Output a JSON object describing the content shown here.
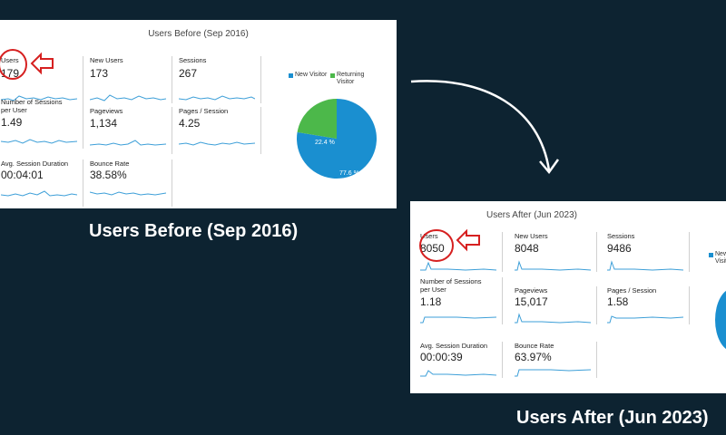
{
  "before": {
    "title": "Users Before (Sep 2016)",
    "caption": "Users Before (Sep 2016)",
    "metrics": [
      {
        "label": "Users",
        "value": "179"
      },
      {
        "label": "New Users",
        "value": "173"
      },
      {
        "label": "Sessions",
        "value": "267"
      },
      {
        "label": "Number of Sessions per User",
        "value": "1.49"
      },
      {
        "label": "Pageviews",
        "value": "1,134"
      },
      {
        "label": "Pages / Session",
        "value": "4.25"
      },
      {
        "label": "Avg. Session Duration",
        "value": "00:04:01"
      },
      {
        "label": "Bounce Rate",
        "value": "38.58%"
      }
    ],
    "legend": {
      "new": "New Visitor",
      "returning": "Returning Visitor"
    },
    "pie": {
      "new_pct": "77.6 %",
      "returning_pct": "22.4 %",
      "new_fraction": 0.776
    }
  },
  "after": {
    "title": "Users After (Jun 2023)",
    "caption": "Users After (Jun 2023)",
    "metrics": [
      {
        "label": "Users",
        "value": "8050"
      },
      {
        "label": "New Users",
        "value": "8048"
      },
      {
        "label": "Sessions",
        "value": "9486"
      },
      {
        "label": "Number of Sessions per User",
        "value": "1.18"
      },
      {
        "label": "Pageviews",
        "value": "15,017"
      },
      {
        "label": "Pages / Session",
        "value": "1.58"
      },
      {
        "label": "Avg. Session Duration",
        "value": "00:00:39"
      },
      {
        "label": "Bounce Rate",
        "value": "63.97%"
      }
    ],
    "legend": {
      "new": "New Visit"
    }
  },
  "colors": {
    "background": "#0d2331",
    "new_visitor": "#1a8fd0",
    "returning_visitor": "#4cb84a",
    "highlight": "#d62020",
    "sparkline": "#3d9fd8"
  }
}
